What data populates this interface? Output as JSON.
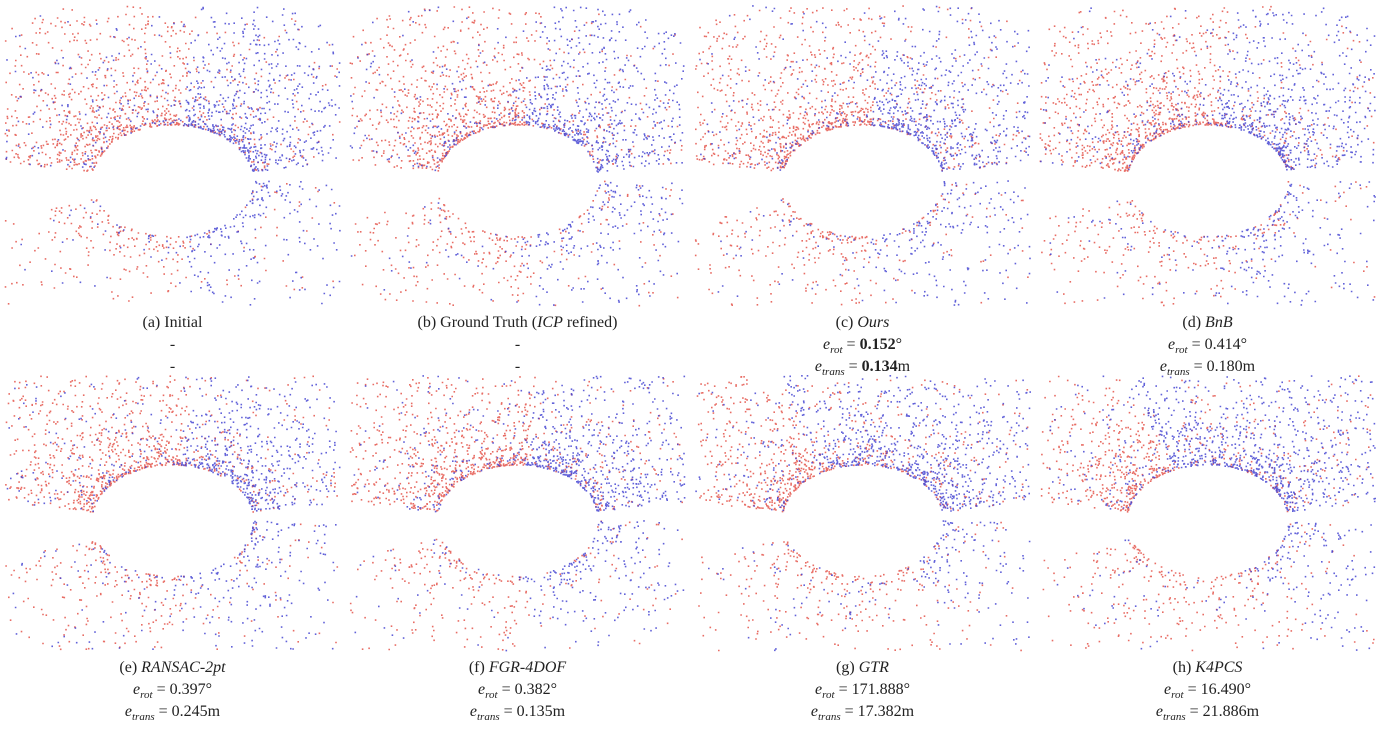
{
  "panels": [
    {
      "caption": [
        {
          "text": "(a) "
        },
        {
          "text": "Initial"
        }
      ],
      "lines": [
        [
          {
            "text": "-"
          }
        ],
        [
          {
            "text": "-"
          }
        ]
      ]
    },
    {
      "caption": [
        {
          "text": "(b) "
        },
        {
          "text": "Ground Truth ("
        },
        {
          "text": "ICP",
          "italic": true
        },
        {
          "text": " refined)"
        }
      ],
      "lines": [
        [
          {
            "text": "-"
          }
        ],
        [
          {
            "text": "-"
          }
        ]
      ]
    },
    {
      "caption": [
        {
          "text": "(c) "
        },
        {
          "text": "Ours",
          "italic": true
        }
      ],
      "lines": [
        [
          {
            "text": "e",
            "italic": true
          },
          {
            "text": "rot",
            "italic": true,
            "sub": true
          },
          {
            "text": " = "
          },
          {
            "text": "0.152",
            "bold": true
          },
          {
            "text": "°"
          }
        ],
        [
          {
            "text": "e",
            "italic": true
          },
          {
            "text": "trans",
            "italic": true,
            "sub": true
          },
          {
            "text": " = "
          },
          {
            "text": "0.134",
            "bold": true
          },
          {
            "text": "m"
          }
        ]
      ]
    },
    {
      "caption": [
        {
          "text": "(d) "
        },
        {
          "text": "BnB",
          "italic": true
        }
      ],
      "lines": [
        [
          {
            "text": "e",
            "italic": true
          },
          {
            "text": "rot",
            "italic": true,
            "sub": true
          },
          {
            "text": " = 0.414°"
          }
        ],
        [
          {
            "text": "e",
            "italic": true
          },
          {
            "text": "trans",
            "italic": true,
            "sub": true
          },
          {
            "text": " = 0.180m"
          }
        ]
      ]
    },
    {
      "caption": [
        {
          "text": "(e) "
        },
        {
          "text": "RANSAC-2pt",
          "italic": true
        }
      ],
      "lines": [
        [
          {
            "text": "e",
            "italic": true
          },
          {
            "text": "rot",
            "italic": true,
            "sub": true
          },
          {
            "text": " = 0.397°"
          }
        ],
        [
          {
            "text": "e",
            "italic": true
          },
          {
            "text": "trans",
            "italic": true,
            "sub": true
          },
          {
            "text": " = 0.245m"
          }
        ]
      ]
    },
    {
      "caption": [
        {
          "text": "(f) "
        },
        {
          "text": "FGR-4DOF",
          "italic": true
        }
      ],
      "lines": [
        [
          {
            "text": "e",
            "italic": true
          },
          {
            "text": "rot",
            "italic": true,
            "sub": true
          },
          {
            "text": " = 0.382°"
          }
        ],
        [
          {
            "text": "e",
            "italic": true
          },
          {
            "text": "trans",
            "italic": true,
            "sub": true
          },
          {
            "text": " = 0.135m"
          }
        ]
      ]
    },
    {
      "caption": [
        {
          "text": "(g) "
        },
        {
          "text": "GTR",
          "italic": true
        }
      ],
      "lines": [
        [
          {
            "text": "e",
            "italic": true
          },
          {
            "text": "rot",
            "italic": true,
            "sub": true
          },
          {
            "text": " = 171.888°"
          }
        ],
        [
          {
            "text": "e",
            "italic": true
          },
          {
            "text": "trans",
            "italic": true,
            "sub": true
          },
          {
            "text": " = 17.382m"
          }
        ]
      ]
    },
    {
      "caption": [
        {
          "text": "(h) "
        },
        {
          "text": "K4PCS",
          "italic": true
        }
      ],
      "lines": [
        [
          {
            "text": "e",
            "italic": true
          },
          {
            "text": "rot",
            "italic": true,
            "sub": true
          },
          {
            "text": " = 16.490°"
          }
        ],
        [
          {
            "text": "e",
            "italic": true
          },
          {
            "text": "trans",
            "italic": true,
            "sub": true
          },
          {
            "text": " = 21.886m"
          }
        ]
      ]
    }
  ]
}
